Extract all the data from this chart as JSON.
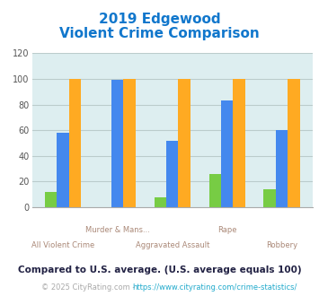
{
  "title_line1": "2019 Edgewood",
  "title_line2": "Violent Crime Comparison",
  "categories": [
    "All Violent Crime",
    "Murder & Mans...",
    "Aggravated Assault",
    "Rape",
    "Robbery"
  ],
  "edgewood": [
    12,
    0,
    8,
    26,
    14
  ],
  "kentucky": [
    58,
    99,
    52,
    83,
    60
  ],
  "national": [
    100,
    100,
    100,
    100,
    100
  ],
  "colors": {
    "edgewood": "#77cc44",
    "kentucky": "#4488ee",
    "national": "#ffaa22"
  },
  "ylim": [
    0,
    120
  ],
  "yticks": [
    0,
    20,
    40,
    60,
    80,
    100,
    120
  ],
  "title_color": "#1177cc",
  "xlabel_color": "#aa8877",
  "legend_label_color": "#222222",
  "footnote1": "Compared to U.S. average. (U.S. average equals 100)",
  "footnote1_color": "#222244",
  "footnote2_prefix": "© 2025 CityRating.com - ",
  "footnote2_link": "https://www.cityrating.com/crime-statistics/",
  "footnote2_prefix_color": "#aaaaaa",
  "footnote2_link_color": "#22aacc",
  "bg_color": "#ddeef0",
  "bar_width": 0.22,
  "grid_color": "#bbcccc"
}
